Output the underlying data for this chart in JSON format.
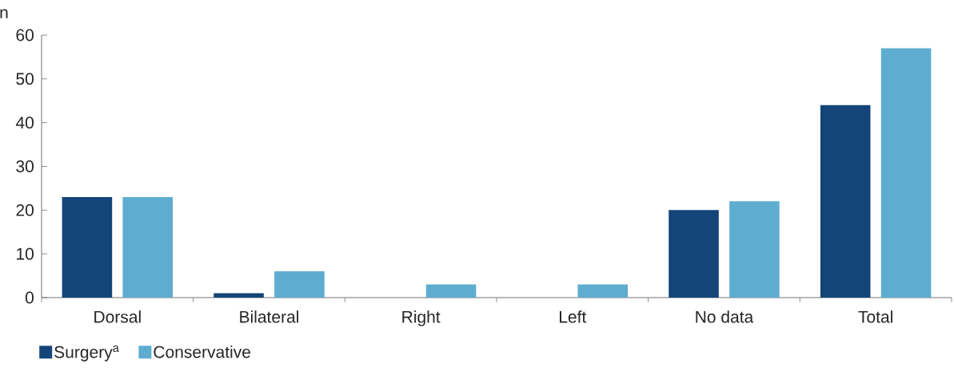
{
  "chart_data": {
    "type": "bar",
    "ylabel": "n",
    "categories": [
      "Dorsal",
      "Bilateral",
      "Right",
      "Left",
      "No data",
      "Total"
    ],
    "series": [
      {
        "name": "Surgery$^{a}$",
        "color": "#134579",
        "values": [
          23,
          1,
          0,
          0,
          20,
          44
        ]
      },
      {
        "name": "Conservative",
        "color": "#5eadd0",
        "values": [
          23,
          6,
          3,
          3,
          22,
          57
        ]
      }
    ],
    "ylim": [
      0,
      60
    ],
    "yticks": [
      0,
      10,
      20,
      30,
      40,
      50,
      60
    ],
    "legend": "bottom left"
  }
}
